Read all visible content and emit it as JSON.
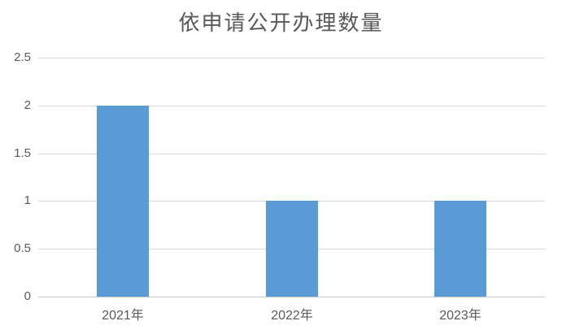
{
  "chart_data": {
    "type": "bar",
    "title": "依申请公开办理数量",
    "categories": [
      "2021年",
      "2022年",
      "2023年"
    ],
    "values": [
      2,
      1,
      1
    ],
    "xlabel": "",
    "ylabel": "",
    "ylim": [
      0,
      2.5
    ],
    "yticks": [
      0,
      0.5,
      1,
      1.5,
      2,
      2.5
    ],
    "ytick_labels": [
      "0",
      "0.5",
      "1",
      "1.5",
      "2",
      "2.5"
    ],
    "grid": true,
    "legend_position": "none",
    "colors": {
      "bar": "#5B9BD5",
      "gridline": "#D9D9D9",
      "axis_line": "#C9C9C9",
      "text": "#595959",
      "background": "#FFFFFF"
    }
  }
}
